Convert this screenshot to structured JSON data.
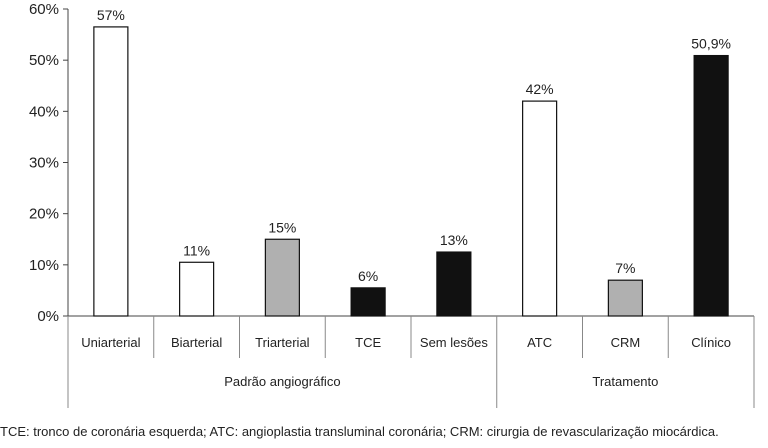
{
  "chart_data": {
    "type": "bar",
    "ylim": [
      0,
      60
    ],
    "yticks": [
      "0%",
      "10%",
      "20%",
      "30%",
      "40%",
      "50%",
      "60%"
    ],
    "categories": [
      "Uniarterial",
      "Biarterial",
      "Triarterial",
      "TCE",
      "Sem lesões",
      "ATC",
      "CRM",
      "Clínico"
    ],
    "values": [
      56.5,
      10.5,
      15,
      5.5,
      12.5,
      42,
      7,
      50.9
    ],
    "value_labels": [
      "57%",
      "11%",
      "15%",
      "6%",
      "13%",
      "42%",
      "7%",
      "50,9%"
    ],
    "bar_colors": [
      "#ffffff",
      "#ffffff",
      "#b0b0b0",
      "#111111",
      "#111111",
      "#ffffff",
      "#b0b0b0",
      "#111111"
    ],
    "groups": [
      {
        "label": "Padrão angiográfico",
        "span": [
          0,
          4
        ]
      },
      {
        "label": "Tratamento",
        "span": [
          5,
          7
        ]
      }
    ]
  },
  "caption": "TCE: tronco de coronária esquerda; ATC: angioplastia transluminal coronária; CRM: cirurgia de revascularização miocárdica."
}
